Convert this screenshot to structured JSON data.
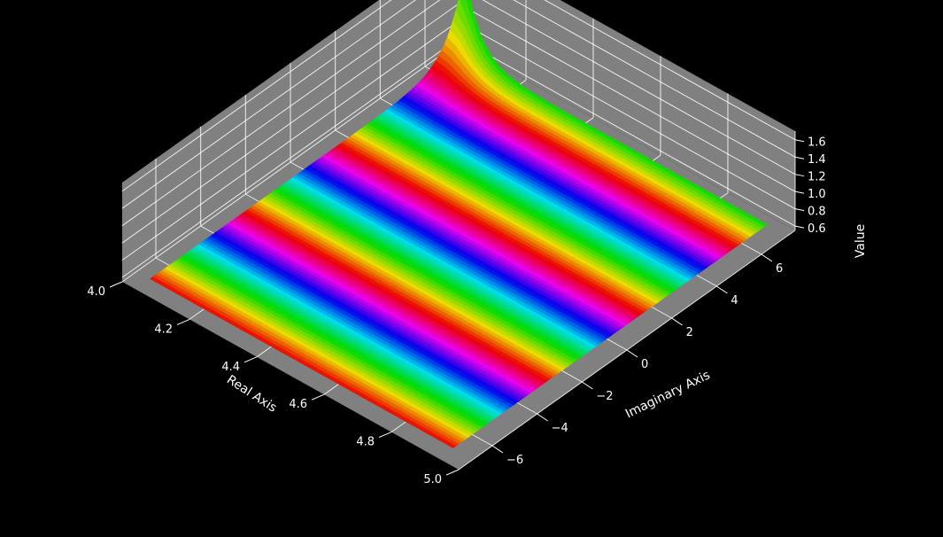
{
  "chart_data": {
    "type": "surface3d",
    "title": "",
    "xlabel": "Real Axis",
    "ylabel": "Imaginary Axis",
    "zlabel": "Value",
    "xlim": [
      4.0,
      5.0
    ],
    "ylim": [
      -7.5,
      7.5
    ],
    "zlim": [
      0.55,
      1.7
    ],
    "xticks": [
      "4.0",
      "4.2",
      "4.4",
      "4.6",
      "4.8",
      "5.0"
    ],
    "yticks": [
      "−6",
      "−4",
      "−2",
      "0",
      "2",
      "4",
      "6"
    ],
    "zticks": [
      "0.6",
      "0.8",
      "1.0",
      "1.2",
      "1.4",
      "1.6"
    ],
    "xtick_values": [
      4.0,
      4.2,
      4.4,
      4.6,
      4.8,
      5.0
    ],
    "ytick_values": [
      -6,
      -4,
      -2,
      0,
      2,
      4,
      6
    ],
    "ztick_values": [
      0.6,
      0.8,
      1.0,
      1.2,
      1.4,
      1.6
    ],
    "surface": {
      "x_range": [
        4.05,
        4.95
      ],
      "y_range": [
        -7,
        7
      ],
      "base_value": 0.6,
      "peak": {
        "x": 4.05,
        "y": 7,
        "value": 1.6
      },
      "colormap": "hsv",
      "color_bands": 20
    },
    "grid": true,
    "colors": {
      "background": "#000000",
      "pane": "#808080",
      "grid": "#ffffff",
      "text": "#ffffff"
    }
  }
}
